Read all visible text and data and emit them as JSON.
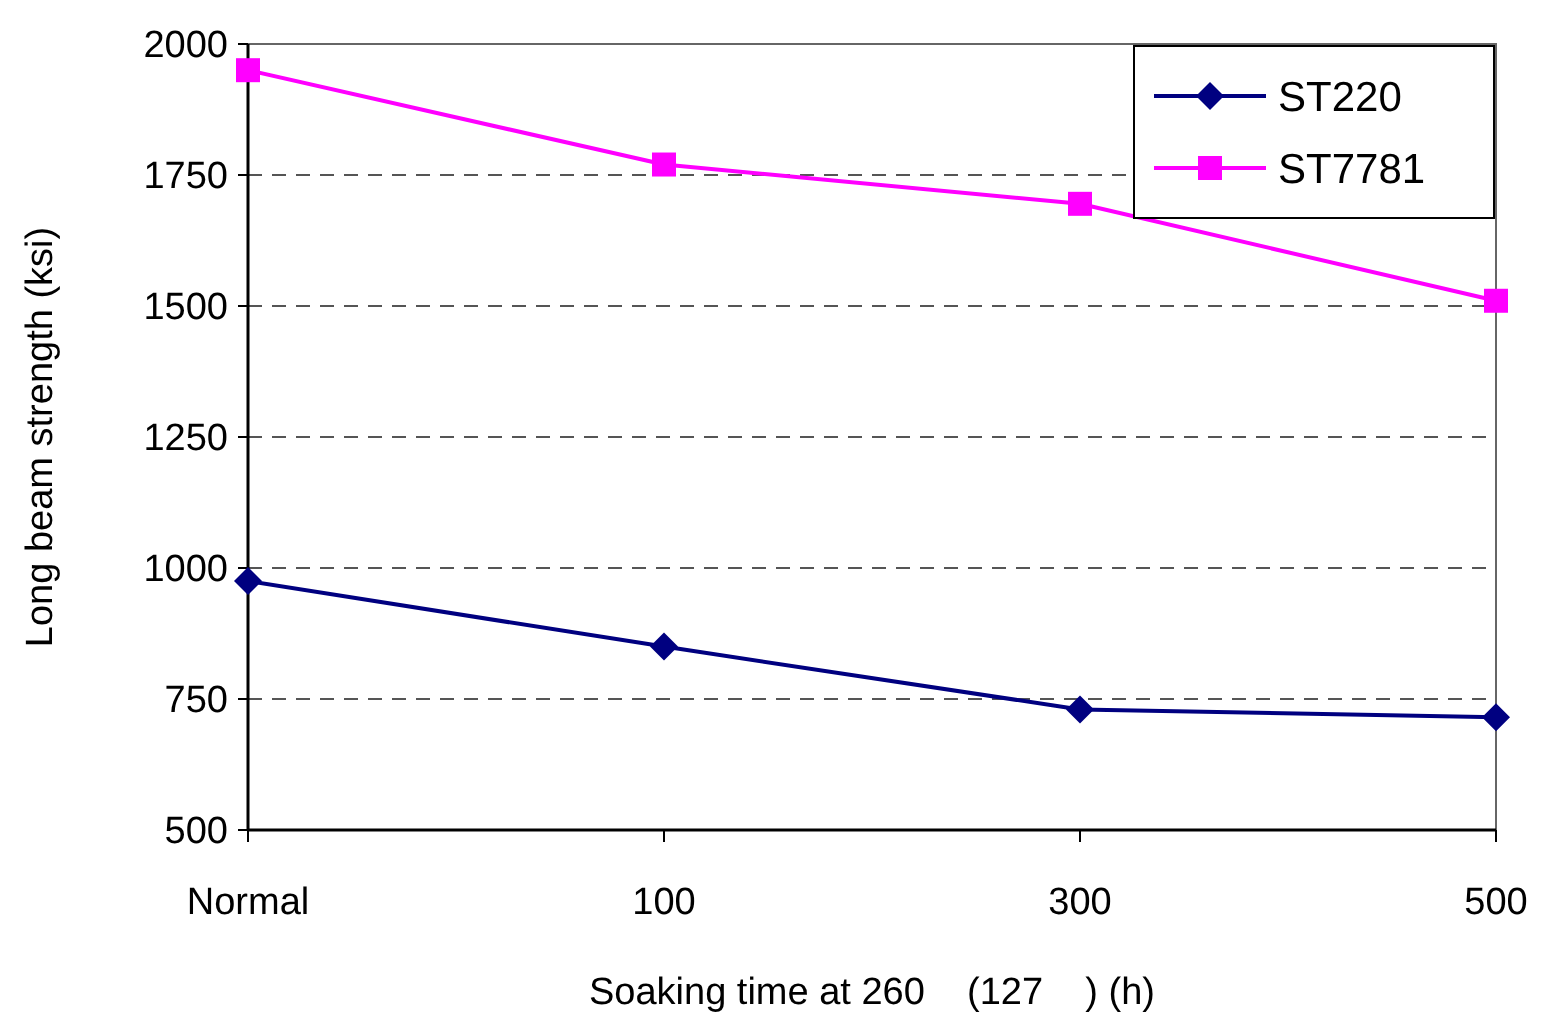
{
  "chart_data": {
    "type": "line",
    "xlabel": "Soaking time at 260    (127    ) (h)",
    "ylabel": "Long beam strength (ksi)",
    "categories": [
      "Normal",
      "100",
      "300",
      "500"
    ],
    "series": [
      {
        "name": "ST220",
        "color": "#000080",
        "marker": "diamond",
        "values": [
          975,
          850,
          730,
          715
        ]
      },
      {
        "name": "ST7781",
        "color": "#ff00ff",
        "marker": "square",
        "values": [
          1950,
          1770,
          1695,
          1510
        ]
      }
    ],
    "ylim": [
      500,
      2000
    ],
    "yticks": [
      500,
      750,
      1000,
      1250,
      1500,
      1750,
      2000
    ],
    "grid": "y",
    "legend": "top right"
  }
}
